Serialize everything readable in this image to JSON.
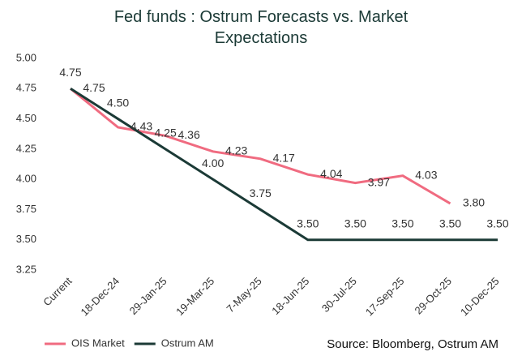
{
  "chart_data": {
    "type": "line",
    "title": "Fed funds : Ostrum Forecasts vs. Market Expectations",
    "source": "Source: Bloomberg, Ostrum AM",
    "categories": [
      "Current",
      "18-Dec-24",
      "29-Jan-25",
      "19-Mar-25",
      "7-May-25",
      "18-Jun-25",
      "30-Jul-25",
      "17-Sep-25",
      "29-Oct-25",
      "10-Dec-25"
    ],
    "series": [
      {
        "name": "OIS Market",
        "color": "#f06b80",
        "values": [
          4.75,
          4.43,
          4.36,
          4.23,
          4.17,
          4.04,
          3.97,
          4.03,
          3.8,
          null
        ],
        "value_labels": [
          "4.75",
          "4.43",
          "4.36",
          "4.23",
          "4.17",
          "4.04",
          "3.97",
          "4.03",
          "3.80",
          null
        ]
      },
      {
        "name": "Ostrum AM",
        "color": "#1b3a36",
        "values": [
          4.75,
          4.5,
          4.25,
          4.0,
          3.75,
          3.5,
          3.5,
          3.5,
          3.5,
          3.5
        ],
        "value_labels": [
          "4.75",
          "4.50",
          "4.25",
          "4.00",
          "3.75",
          "3.50",
          "3.50",
          "3.50",
          "3.50",
          "3.50"
        ]
      }
    ],
    "ylim": [
      3.25,
      5.0
    ],
    "yticks": [
      {
        "value": 3.25,
        "label": "3.25"
      },
      {
        "value": 3.5,
        "label": "3.50"
      },
      {
        "value": 3.75,
        "label": "3.75"
      },
      {
        "value": 4.0,
        "label": "4.00"
      },
      {
        "value": 4.25,
        "label": "4.25"
      },
      {
        "value": 4.5,
        "label": "4.50"
      },
      {
        "value": 4.75,
        "label": "4.75"
      },
      {
        "value": 5.0,
        "label": "5.00"
      }
    ],
    "grid": false,
    "legend": "bottom-left"
  }
}
